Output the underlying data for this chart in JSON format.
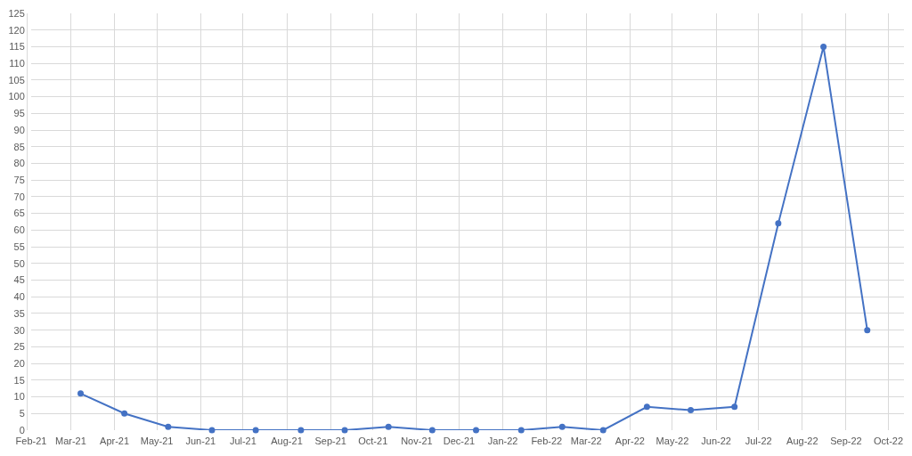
{
  "chart_data": {
    "type": "line",
    "x": [
      "2021-03-08",
      "2021-04-08",
      "2021-05-09",
      "2021-06-09",
      "2021-07-10",
      "2021-08-11",
      "2021-09-11",
      "2021-10-12",
      "2021-11-12",
      "2021-12-13",
      "2022-01-14",
      "2022-02-12",
      "2022-03-13",
      "2022-04-13",
      "2022-05-14",
      "2022-06-14",
      "2022-07-15",
      "2022-08-16",
      "2022-09-16"
    ],
    "series": [
      {
        "color": "#4472c4",
        "values": [
          11,
          5,
          1,
          0,
          0,
          0,
          0,
          1,
          0,
          0,
          0,
          1,
          0,
          7,
          6,
          7,
          62,
          115,
          30
        ]
      }
    ],
    "xlim": [
      "2021-02-01",
      "2022-10-12"
    ],
    "xticks": [
      {
        "value": "2021-02-01",
        "label": "Feb-21"
      },
      {
        "value": "2021-03-01",
        "label": "Mar-21"
      },
      {
        "value": "2021-04-01",
        "label": "Apr-21"
      },
      {
        "value": "2021-05-01",
        "label": "May-21"
      },
      {
        "value": "2021-06-01",
        "label": "Jun-21"
      },
      {
        "value": "2021-07-01",
        "label": "Jul-21"
      },
      {
        "value": "2021-08-01",
        "label": "Aug-21"
      },
      {
        "value": "2021-09-01",
        "label": "Sep-21"
      },
      {
        "value": "2021-10-01",
        "label": "Oct-21"
      },
      {
        "value": "2021-11-01",
        "label": "Nov-21"
      },
      {
        "value": "2021-12-01",
        "label": "Dec-21"
      },
      {
        "value": "2022-01-01",
        "label": "Jan-22"
      },
      {
        "value": "2022-02-01",
        "label": "Feb-22"
      },
      {
        "value": "2022-03-01",
        "label": "Mar-22"
      },
      {
        "value": "2022-04-01",
        "label": "Apr-22"
      },
      {
        "value": "2022-05-01",
        "label": "May-22"
      },
      {
        "value": "2022-06-01",
        "label": "Jun-22"
      },
      {
        "value": "2022-07-01",
        "label": "Jul-22"
      },
      {
        "value": "2022-08-01",
        "label": "Aug-22"
      },
      {
        "value": "2022-09-01",
        "label": "Sep-22"
      },
      {
        "value": "2022-10-01",
        "label": "Oct-22"
      }
    ],
    "ylim": [
      0,
      125
    ],
    "yticks": [
      0,
      5,
      10,
      15,
      20,
      25,
      30,
      35,
      40,
      45,
      50,
      55,
      60,
      65,
      70,
      75,
      80,
      85,
      90,
      95,
      100,
      105,
      110,
      115,
      120,
      125
    ],
    "grid": true,
    "marker": "circle",
    "line_style": "solid"
  }
}
